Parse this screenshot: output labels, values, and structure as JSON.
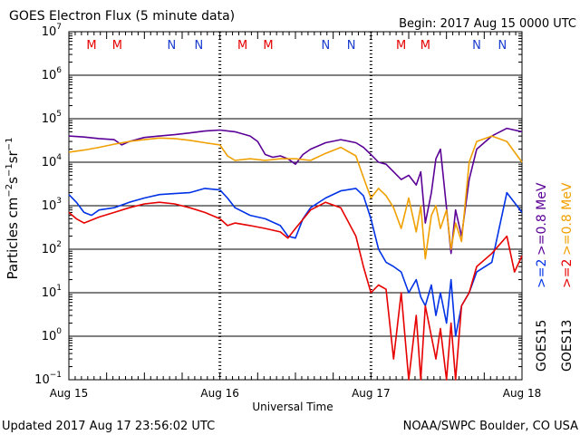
{
  "header": {
    "title": "GOES Electron Flux (5 minute data)",
    "begin": "Begin: 2017 Aug 15 0000 UTC"
  },
  "footer": {
    "updated": "Updated 2017 Aug 17 23:56:02 UTC",
    "credit": "NOAA/SWPC Boulder, CO USA"
  },
  "colors": {
    "goes15_high": "#5a0096",
    "goes15_low": "#0032e6",
    "goes13_high": "#f0a000",
    "goes13_low": "#e60000",
    "marker_m": "#e60000",
    "marker_n": "#1a3cd0"
  },
  "legend": {
    "goes15_label": "GOES15",
    "goes15_low": ">=2",
    "goes15_high": ">=0.8 MeV",
    "goes13_label": "GOES13",
    "goes13_low": ">=2",
    "goes13_high": ">=0.8 MeV"
  },
  "chart_data": {
    "type": "line",
    "title": "GOES Electron Flux (5 minute data)",
    "xlabel": "Universal Time",
    "ylabel": "Particles cm-2s-1sr-1",
    "y_scale": "log",
    "ylim": [
      0.1,
      10000000
    ],
    "y_ticks": [
      "10^-1",
      "10^0",
      "10^1",
      "10^2",
      "10^3",
      "10^4",
      "10^5",
      "10^6",
      "10^7"
    ],
    "x_ticks": [
      "Aug 15",
      "Aug 16",
      "Aug 17",
      "Aug 18"
    ],
    "xlim_days": [
      0,
      3
    ],
    "threshold": 1000,
    "grid": true,
    "markers": [
      {
        "label": "M",
        "day": 0.15
      },
      {
        "label": "M",
        "day": 0.32
      },
      {
        "label": "N",
        "day": 0.68
      },
      {
        "label": "N",
        "day": 0.86
      },
      {
        "label": "M",
        "day": 1.15
      },
      {
        "label": "M",
        "day": 1.32
      },
      {
        "label": "N",
        "day": 1.7
      },
      {
        "label": "N",
        "day": 1.87
      },
      {
        "label": "M",
        "day": 2.2
      },
      {
        "label": "M",
        "day": 2.36
      },
      {
        "label": "N",
        "day": 2.7
      },
      {
        "label": "N",
        "day": 2.87
      }
    ],
    "series": [
      {
        "name": "GOES15 >=0.8 MeV",
        "color": "#5a0096",
        "x": [
          0,
          0.1,
          0.2,
          0.3,
          0.35,
          0.4,
          0.5,
          0.6,
          0.7,
          0.8,
          0.9,
          1.0,
          1.1,
          1.2,
          1.25,
          1.3,
          1.35,
          1.4,
          1.45,
          1.5,
          1.55,
          1.6,
          1.7,
          1.8,
          1.9,
          1.95,
          2.0,
          2.05,
          2.1,
          2.15,
          2.2,
          2.25,
          2.3,
          2.33,
          2.36,
          2.4,
          2.43,
          2.46,
          2.5,
          2.53,
          2.56,
          2.6,
          2.65,
          2.7,
          2.8,
          2.9,
          3.0
        ],
        "y": [
          40000,
          38000,
          35000,
          33000,
          25000,
          30000,
          37000,
          40000,
          43000,
          47000,
          52000,
          55000,
          50000,
          40000,
          30000,
          15000,
          13000,
          14000,
          12000,
          9000,
          15000,
          20000,
          28000,
          33000,
          28000,
          22000,
          15000,
          10000,
          9000,
          6000,
          4000,
          5000,
          3000,
          6000,
          400,
          2000,
          12000,
          20000,
          900,
          80,
          800,
          200,
          4000,
          20000,
          40000,
          60000,
          50000
        ]
      },
      {
        "name": "GOES13 >=0.8 MeV",
        "color": "#f0a000",
        "x": [
          0,
          0.1,
          0.2,
          0.3,
          0.4,
          0.5,
          0.6,
          0.7,
          0.8,
          0.9,
          1.0,
          1.05,
          1.1,
          1.2,
          1.3,
          1.4,
          1.5,
          1.6,
          1.7,
          1.8,
          1.9,
          1.95,
          2.0,
          2.05,
          2.1,
          2.15,
          2.2,
          2.25,
          2.3,
          2.33,
          2.36,
          2.4,
          2.43,
          2.46,
          2.5,
          2.53,
          2.56,
          2.6,
          2.65,
          2.7,
          2.8,
          2.9,
          3.0
        ],
        "y": [
          17000,
          19000,
          22000,
          26000,
          30000,
          33000,
          36000,
          35000,
          32000,
          28000,
          25000,
          14000,
          11000,
          12000,
          11000,
          12000,
          12000,
          11000,
          16000,
          22000,
          14000,
          4500,
          1500,
          2500,
          1700,
          900,
          300,
          1500,
          250,
          1000,
          60,
          600,
          1000,
          300,
          800,
          100,
          400,
          150,
          10000,
          30000,
          40000,
          30000,
          10000
        ]
      },
      {
        "name": "GOES15 >=2",
        "color": "#0032e6",
        "x": [
          0,
          0.05,
          0.1,
          0.15,
          0.2,
          0.3,
          0.4,
          0.5,
          0.6,
          0.7,
          0.8,
          0.9,
          1.0,
          1.05,
          1.1,
          1.2,
          1.3,
          1.4,
          1.45,
          1.5,
          1.55,
          1.6,
          1.7,
          1.8,
          1.9,
          1.95,
          2.0,
          2.05,
          2.1,
          2.15,
          2.2,
          2.25,
          2.3,
          2.33,
          2.36,
          2.4,
          2.43,
          2.46,
          2.5,
          2.53,
          2.56,
          2.6,
          2.65,
          2.7,
          2.8,
          2.9,
          3.0
        ],
        "y": [
          1800,
          1200,
          700,
          600,
          800,
          900,
          1200,
          1500,
          1800,
          1900,
          2000,
          2500,
          2300,
          1500,
          900,
          600,
          500,
          350,
          200,
          180,
          500,
          900,
          1500,
          2200,
          2500,
          1700,
          500,
          100,
          50,
          40,
          30,
          10,
          20,
          8,
          5,
          15,
          3,
          10,
          2,
          20,
          1,
          5,
          10,
          30,
          50,
          2000,
          700
        ]
      },
      {
        "name": "GOES13 >=2",
        "color": "#e60000",
        "x": [
          0,
          0.05,
          0.1,
          0.2,
          0.3,
          0.4,
          0.5,
          0.6,
          0.7,
          0.8,
          0.9,
          1.0,
          1.05,
          1.1,
          1.2,
          1.3,
          1.4,
          1.45,
          1.5,
          1.6,
          1.7,
          1.8,
          1.9,
          1.95,
          2.0,
          2.05,
          2.1,
          2.15,
          2.2,
          2.25,
          2.3,
          2.33,
          2.36,
          2.4,
          2.43,
          2.46,
          2.5,
          2.53,
          2.56,
          2.6,
          2.65,
          2.7,
          2.8,
          2.9,
          2.95,
          3.0
        ],
        "y": [
          700,
          500,
          400,
          550,
          700,
          900,
          1100,
          1200,
          1100,
          900,
          700,
          500,
          350,
          400,
          350,
          300,
          250,
          180,
          300,
          800,
          1200,
          900,
          200,
          40,
          10,
          15,
          12,
          0.3,
          10,
          0.1,
          3,
          0.1,
          5,
          1,
          0.3,
          1.5,
          0.1,
          2,
          0.1,
          5,
          10,
          40,
          80,
          200,
          30,
          70
        ]
      }
    ]
  }
}
